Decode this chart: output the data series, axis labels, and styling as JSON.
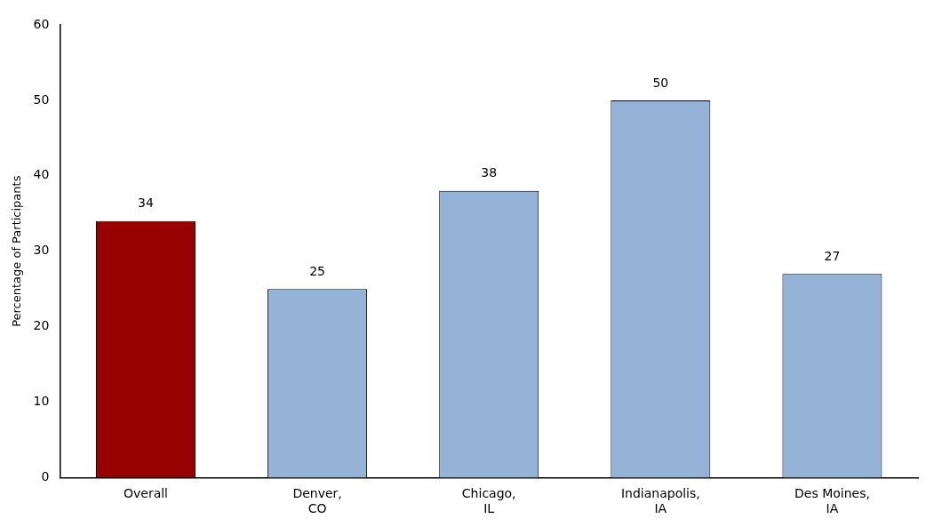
{
  "chart_data": {
    "type": "bar",
    "ylabel": "Percentage of Participants",
    "categories": [
      "Overall",
      "Denver,\nCO",
      "Chicago,\nIL",
      "Indianapolis,\nIA",
      "Des Moines,\nIA"
    ],
    "values": [
      34,
      25,
      38,
      50,
      27
    ],
    "colors": [
      "#990000",
      "#95b3d7",
      "#95b3d7",
      "#95b3d7",
      "#95b3d7"
    ],
    "ylim": [
      0,
      60
    ],
    "yticks": [
      0,
      10,
      20,
      30,
      40,
      50,
      60
    ],
    "grid": false,
    "legend": false,
    "data_labels": true
  }
}
